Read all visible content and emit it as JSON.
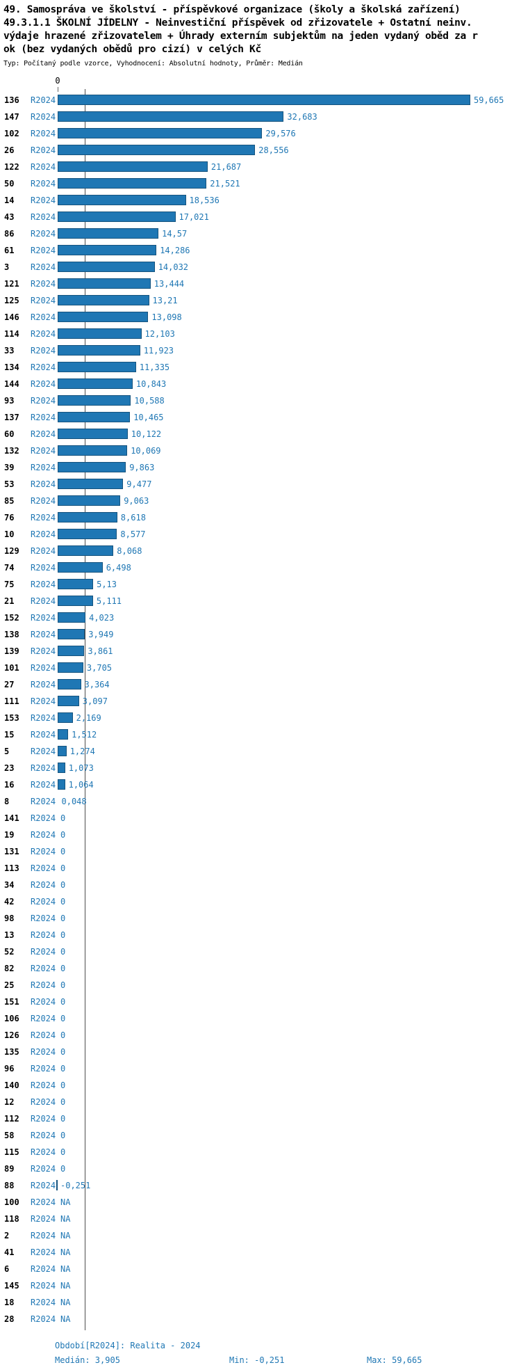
{
  "colors": {
    "bar_fill": "#1f77b4",
    "bar_border": "#15537e",
    "accent_text": "#1f77b4",
    "label_text": "#000000",
    "median_line": "#4d4d4d",
    "background": "#ffffff"
  },
  "header": {
    "line1": "49. Samospráva ve školství - příspěvkové organizace (školy a školská zařízení)",
    "line2": "49.3.1.1 ŠKOLNÍ JÍDELNY - Neinvestiční příspěvek od zřizovatele + Ostatní neinv.",
    "line3": "výdaje hrazené zřizovatelem + Úhrady externím subjektům na jeden vydaný oběd za r",
    "line4": "ok (bez vydaných obědů pro cizí) v celých Kč",
    "meta": "Typ: Počítaný podle vzorce, Vyhodnocení: Absolutní hodnoty, Průměr: Medián"
  },
  "axis": {
    "zero_label": "0"
  },
  "footer": {
    "period": "Období[R2024]: Realita - 2024",
    "median": "Medián: 3,905",
    "min": "Min: -0,251",
    "max": "Max: 59,665"
  },
  "chart_data": {
    "type": "bar",
    "orientation": "horizontal",
    "series_name": "R2024",
    "title": "49.3.1.1 ŠKOLNÍ JÍDELNY - Neinvestiční příspěvek od zřizovatele + Ostatní neinv. výdaje hrazené zřizovatelem + Úhrady externím subjektům na jeden vydaný oběd za rok (bez vydaných obědů pro cizí) v celých Kč",
    "categories": [
      "136",
      "147",
      "102",
      "26",
      "122",
      "50",
      "14",
      "43",
      "86",
      "61",
      "3",
      "121",
      "125",
      "146",
      "114",
      "33",
      "134",
      "144",
      "93",
      "137",
      "60",
      "132",
      "39",
      "53",
      "85",
      "76",
      "10",
      "129",
      "74",
      "75",
      "21",
      "152",
      "138",
      "139",
      "101",
      "27",
      "111",
      "153",
      "15",
      "5",
      "23",
      "16",
      "8",
      "141",
      "19",
      "131",
      "113",
      "34",
      "42",
      "98",
      "13",
      "52",
      "82",
      "25",
      "151",
      "106",
      "126",
      "135",
      "96",
      "140",
      "12",
      "112",
      "58",
      "115",
      "89",
      "88",
      "100",
      "118",
      "2",
      "41",
      "6",
      "145",
      "18",
      "28"
    ],
    "values": [
      59.665,
      32.683,
      29.576,
      28.556,
      21.687,
      21.521,
      18.536,
      17.021,
      14.57,
      14.286,
      14.032,
      13.444,
      13.21,
      13.098,
      12.103,
      11.923,
      11.335,
      10.843,
      10.588,
      10.465,
      10.122,
      10.069,
      9.863,
      9.477,
      9.063,
      8.618,
      8.577,
      8.068,
      6.498,
      5.13,
      5.111,
      4.023,
      3.949,
      3.861,
      3.705,
      3.364,
      3.097,
      2.169,
      1.512,
      1.274,
      1.073,
      1.064,
      0.048,
      0,
      0,
      0,
      0,
      0,
      0,
      0,
      0,
      0,
      0,
      0,
      0,
      0,
      0,
      0,
      0,
      0,
      0,
      0,
      0,
      0,
      0,
      -0.251,
      null,
      null,
      null,
      null,
      null,
      null,
      null,
      null
    ],
    "value_labels": [
      "59,665",
      "32,683",
      "29,576",
      "28,556",
      "21,687",
      "21,521",
      "18,536",
      "17,021",
      "14,57",
      "14,286",
      "14,032",
      "13,444",
      "13,21",
      "13,098",
      "12,103",
      "11,923",
      "11,335",
      "10,843",
      "10,588",
      "10,465",
      "10,122",
      "10,069",
      "9,863",
      "9,477",
      "9,063",
      "8,618",
      "8,577",
      "8,068",
      "6,498",
      "5,13",
      "5,111",
      "4,023",
      "3,949",
      "3,861",
      "3,705",
      "3,364",
      "3,097",
      "2,169",
      "1,512",
      "1,274",
      "1,073",
      "1,064",
      "0,048",
      "0",
      "0",
      "0",
      "0",
      "0",
      "0",
      "0",
      "0",
      "0",
      "0",
      "0",
      "0",
      "0",
      "0",
      "0",
      "0",
      "0",
      "0",
      "0",
      "0",
      "0",
      "0",
      "-0,251",
      "NA",
      "NA",
      "NA",
      "NA",
      "NA",
      "NA",
      "NA",
      "NA"
    ],
    "na_label": "NA",
    "xlim": [
      -0.5,
      63
    ],
    "grid": false,
    "legend": "none",
    "stats": {
      "median": 3.905,
      "min": -0.251,
      "max": 59.665
    }
  }
}
